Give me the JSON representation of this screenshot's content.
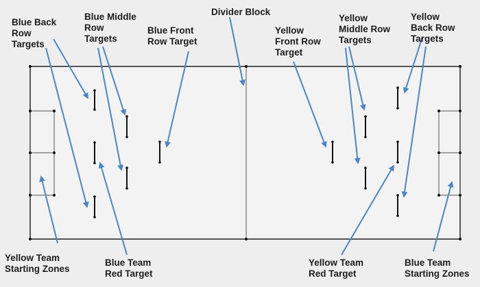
{
  "labels": {
    "blue_back_row": "Blue Back\nRow\nTargets",
    "blue_middle_row": "Blue Middle\nRow\nTargets",
    "blue_front_row": "Blue Front\nRow Target",
    "divider_block": "Divider Block",
    "yellow_front_row": "Yellow\nFront Row\nTarget",
    "yellow_middle_row": "Yellow\nMiddle Row\nTargets",
    "yellow_back_row": "Yellow\nBack Row\nTargets",
    "yellow_starting_zones": "Yellow Team\nStarting Zones",
    "blue_red_target": "Blue Team\nRed Target",
    "yellow_red_target": "Yellow Team\nRed Target",
    "blue_starting_zones": "Blue Team\nStarting Zones"
  },
  "colors": {
    "background": "#eeeeee",
    "field_line": "#222222",
    "arrow": "#4a86c5",
    "text": "#1c1c1c"
  }
}
